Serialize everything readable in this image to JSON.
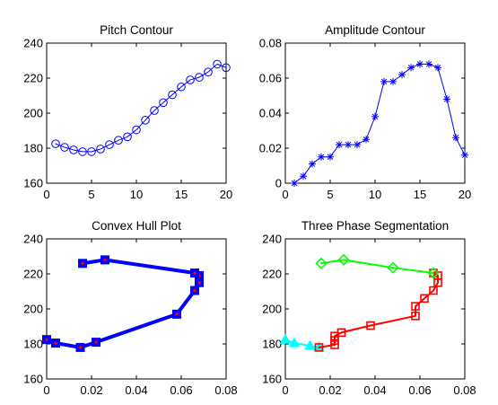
{
  "figure": {
    "background": "#ffffff"
  },
  "chart_data": [
    {
      "id": "pitch",
      "type": "line",
      "title": "Pitch Contour",
      "xlim": [
        0,
        20
      ],
      "ylim": [
        160,
        240
      ],
      "xticks": [
        0,
        5,
        10,
        15,
        20
      ],
      "yticks": [
        160,
        180,
        200,
        220,
        240
      ],
      "series": [
        {
          "color": "#0000ff",
          "marker": "circle",
          "line_width": 1,
          "x": [
            1,
            2,
            3,
            4,
            5,
            6,
            7,
            8,
            9,
            10,
            11,
            12,
            13,
            14,
            15,
            16,
            17,
            18,
            19,
            20
          ],
          "y": [
            182.5,
            180.5,
            179,
            178,
            178,
            179.5,
            182,
            184.5,
            186.5,
            190.5,
            196,
            201.5,
            206,
            210.5,
            215,
            219,
            220.5,
            223.5,
            228,
            226
          ]
        }
      ]
    },
    {
      "id": "amplitude",
      "type": "line",
      "title": "Amplitude Contour",
      "xlim": [
        0,
        20
      ],
      "ylim": [
        0,
        0.08
      ],
      "xticks": [
        0,
        5,
        10,
        15,
        20
      ],
      "yticks": [
        0,
        0.02,
        0.04,
        0.06,
        0.08
      ],
      "series": [
        {
          "color": "#0000ff",
          "marker": "asterisk",
          "line_width": 1,
          "x": [
            1,
            2,
            3,
            4,
            5,
            6,
            7,
            8,
            9,
            10,
            11,
            12,
            13,
            14,
            15,
            16,
            17,
            18,
            19,
            20
          ],
          "y": [
            0,
            0.004,
            0.011,
            0.015,
            0.015,
            0.022,
            0.022,
            0.022,
            0.025,
            0.038,
            0.058,
            0.058,
            0.062,
            0.066,
            0.068,
            0.068,
            0.066,
            0.048,
            0.026,
            0.016
          ]
        }
      ]
    },
    {
      "id": "convex",
      "type": "line",
      "title": "Convex Hull Plot",
      "xlim": [
        0,
        0.08
      ],
      "ylim": [
        160,
        240
      ],
      "xticks": [
        0,
        0.02,
        0.04,
        0.06,
        0.08
      ],
      "yticks": [
        160,
        180,
        200,
        220,
        240
      ],
      "series": [
        {
          "color": "#0000ff",
          "marker": "square",
          "marker_fill": "#0000ff",
          "center_dot": "#ff0000",
          "line_width": 4,
          "x": [
            0,
            0.004,
            0.015,
            0.022,
            0.058,
            0.066,
            0.068,
            0.068,
            0.066,
            0.026,
            0.016
          ],
          "y": [
            182.5,
            180.5,
            178,
            181,
            197,
            210.5,
            215,
            219,
            220.5,
            228,
            226
          ]
        }
      ]
    },
    {
      "id": "segmentation",
      "type": "line",
      "title": "Three Phase Segmentation",
      "xlim": [
        0,
        0.08
      ],
      "ylim": [
        160,
        240
      ],
      "xticks": [
        0,
        0.02,
        0.04,
        0.06,
        0.08
      ],
      "yticks": [
        160,
        180,
        200,
        220,
        240
      ],
      "series": [
        {
          "color": "#00ffff",
          "marker": "triangle",
          "marker_fill": "#00ffff",
          "line_width": 2,
          "x": [
            0,
            0.004,
            0.011,
            0.015
          ],
          "y": [
            182.5,
            180.5,
            179,
            178
          ]
        },
        {
          "color": "#ff0000",
          "marker": "square",
          "marker_fill": "none",
          "line_width": 2,
          "x": [
            0.015,
            0.022,
            0.022,
            0.022,
            0.025,
            0.038,
            0.058,
            0.058,
            0.062,
            0.066,
            0.068,
            0.068,
            0.066
          ],
          "y": [
            178,
            179.5,
            182,
            184.5,
            186.5,
            190.5,
            196,
            201.5,
            206,
            210.5,
            215,
            219,
            220.5
          ]
        },
        {
          "color": "#00ff00",
          "marker": "diamond",
          "marker_fill": "none",
          "line_width": 2,
          "x": [
            0.066,
            0.048,
            0.026,
            0.016
          ],
          "y": [
            220.5,
            223.5,
            228,
            226
          ]
        }
      ]
    }
  ]
}
